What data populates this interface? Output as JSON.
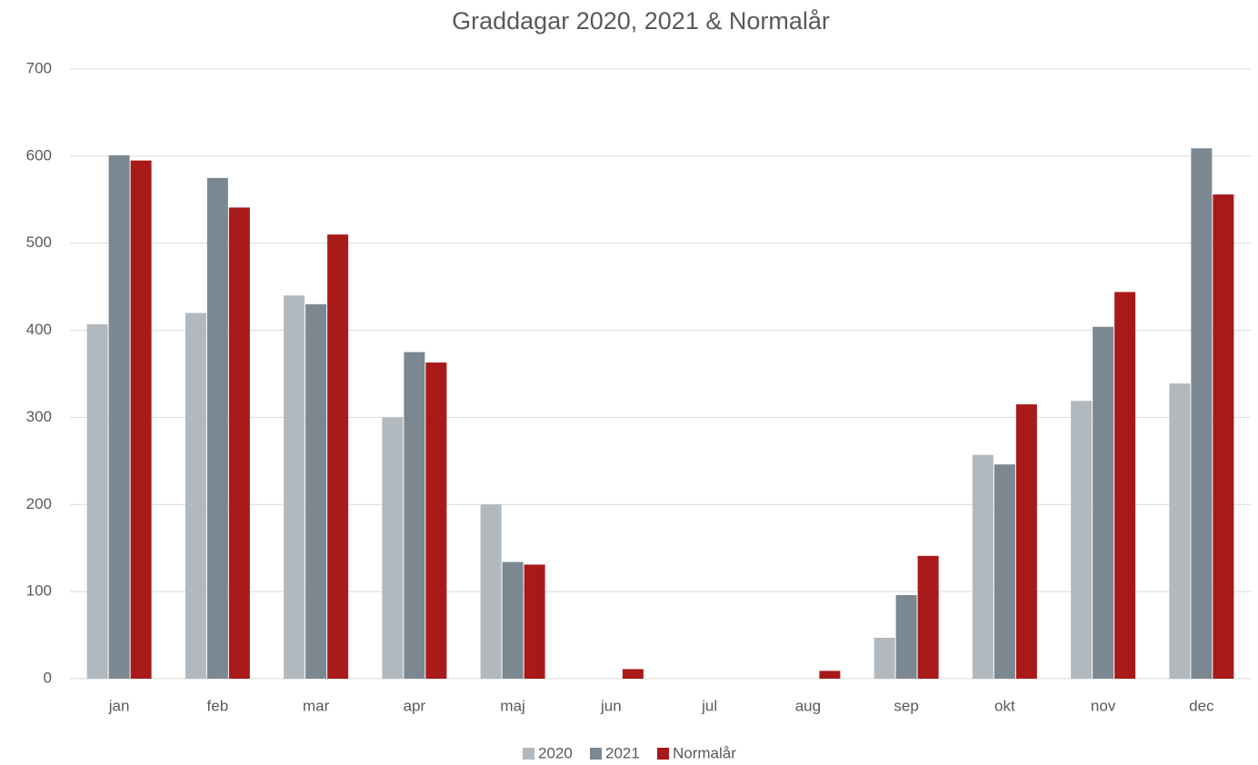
{
  "chart_data": {
    "type": "bar",
    "title": "Graddagar 2020, 2021 & Normalår",
    "categories": [
      "jan",
      "feb",
      "mar",
      "apr",
      "maj",
      "jun",
      "jul",
      "aug",
      "sep",
      "okt",
      "nov",
      "dec"
    ],
    "series": [
      {
        "name": "2020",
        "color": "#b2b9be",
        "values": [
          407,
          420,
          440,
          300,
          200,
          0,
          0,
          0,
          47,
          257,
          319,
          339
        ]
      },
      {
        "name": "2021",
        "color": "#7b8891",
        "values": [
          601,
          575,
          430,
          375,
          134,
          0,
          0,
          0,
          96,
          246,
          404,
          609
        ]
      },
      {
        "name": "Normalår",
        "color": "#a81a1a",
        "values": [
          595,
          541,
          510,
          363,
          131,
          11,
          0,
          9,
          141,
          315,
          444,
          556
        ]
      }
    ],
    "ylim": [
      0,
      700
    ],
    "yticks": [
      0,
      100,
      200,
      300,
      400,
      500,
      600,
      700
    ],
    "grid": true,
    "legend": "bottom"
  }
}
